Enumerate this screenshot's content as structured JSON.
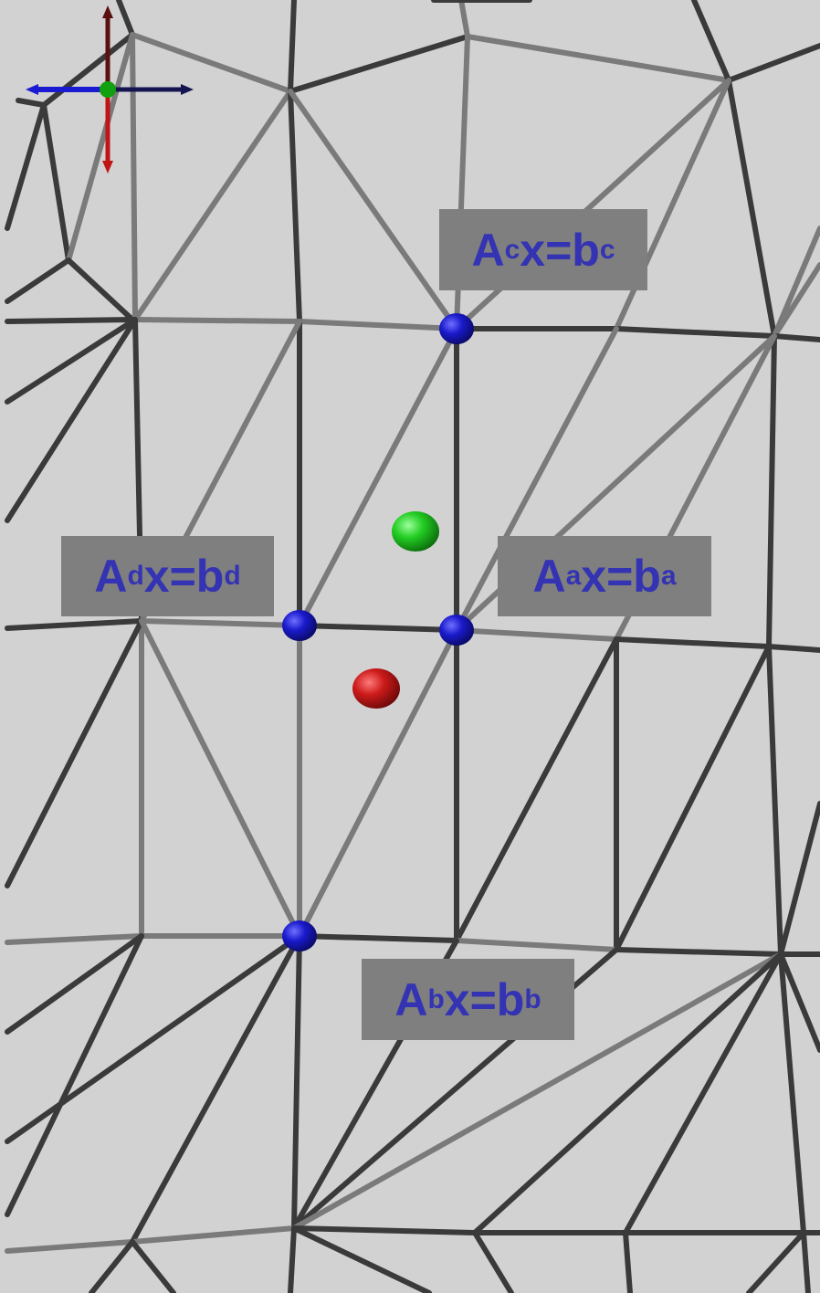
{
  "colors": {
    "background": "#d2d2d2",
    "edge_dark": "#3a3a3a",
    "edge_light": "#7a7a7a",
    "vertex_marker": "#1a1acc",
    "green_point": "#22cc22",
    "red_point": "#cc1a1a",
    "label_box": "#7f7f7f",
    "label_text": "#3333b3",
    "axis_red": "#b01515",
    "axis_blue": "#1515c0",
    "axis_green": "#10a010"
  },
  "labels": {
    "c": {
      "main": "A",
      "sub1": "c",
      "mid": "x=b",
      "sub2": "c"
    },
    "d": {
      "main": "A",
      "sub1": "d",
      "mid": "x=b",
      "sub2": "d"
    },
    "a": {
      "main": "A",
      "sub1": "a",
      "mid": "x=b",
      "sub2": "a"
    },
    "b": {
      "main": "A",
      "sub1": "b",
      "mid": "x=b",
      "sub2": "b"
    }
  },
  "icons": {
    "axes_gizmo": "orientation-axes-icon",
    "vertex": "blue-sphere-icon",
    "green_point": "green-sphere-icon",
    "red_point": "red-sphere-icon"
  }
}
